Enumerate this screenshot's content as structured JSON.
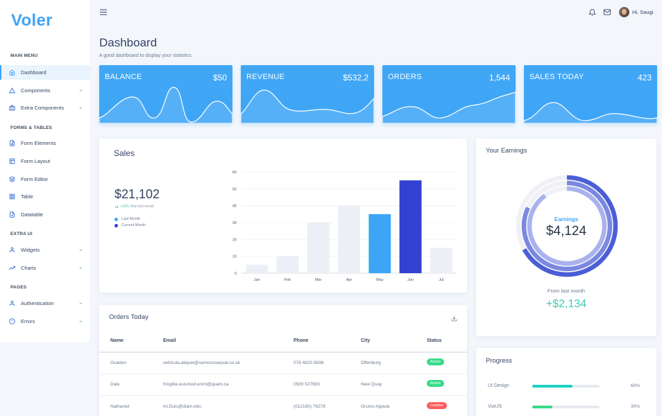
{
  "app": {
    "logo": "Voler"
  },
  "header": {
    "greeting": "Hi, Saugi"
  },
  "page": {
    "title": "Dashboard",
    "subtitle": "A good dashboard to display your statistics"
  },
  "sidebar": {
    "sections": [
      {
        "title": "Main Menu",
        "items": [
          {
            "label": "Dashboard",
            "icon": "home-icon",
            "active": true
          },
          {
            "label": "Components",
            "icon": "triangle-icon",
            "dropdown": true
          },
          {
            "label": "Extra Components",
            "icon": "briefcase-icon",
            "dropdown": true
          }
        ]
      },
      {
        "title": "Forms & Tables",
        "items": [
          {
            "label": "Form Elements",
            "icon": "file-text-icon"
          },
          {
            "label": "Form Layout",
            "icon": "layout-icon"
          },
          {
            "label": "Form Editor",
            "icon": "layers-icon"
          },
          {
            "label": "Table",
            "icon": "grid-icon"
          },
          {
            "label": "Datatable",
            "icon": "file-plus-icon"
          }
        ]
      },
      {
        "title": "Extra UI",
        "items": [
          {
            "label": "Widgets",
            "icon": "user-icon",
            "dropdown": true
          },
          {
            "label": "Charts",
            "icon": "trending-up-icon",
            "dropdown": true
          }
        ]
      },
      {
        "title": "Pages",
        "items": [
          {
            "label": "Authentication",
            "icon": "user-icon",
            "dropdown": true
          },
          {
            "label": "Errors",
            "icon": "alert-circle-icon",
            "dropdown": true
          }
        ]
      }
    ]
  },
  "stats": [
    {
      "label": "BALANCE",
      "value": "$50"
    },
    {
      "label": "REVENUE",
      "value": "$532,2"
    },
    {
      "label": "ORDERS",
      "value": "1,544"
    },
    {
      "label": "SALES TODAY",
      "value": "423"
    }
  ],
  "sales": {
    "title": "Sales",
    "total": "$21,102",
    "change": "+12%",
    "change_note": "than last month",
    "legend": [
      {
        "label": "Last Month",
        "color": "#3ea5f6"
      },
      {
        "label": "Current Month",
        "color": "#3241d0"
      }
    ]
  },
  "chart_data": {
    "type": "bar",
    "categories": [
      "Jan",
      "Feb",
      "Mar",
      "Apr",
      "May",
      "Jun",
      "Jul"
    ],
    "values": [
      5,
      10,
      30,
      40,
      35,
      55,
      15
    ],
    "bar_colors": [
      "#eceff6",
      "#eceff6",
      "#eceff6",
      "#eceff6",
      "#3ea5f6",
      "#3241d0",
      "#eceff6"
    ],
    "ylim": [
      0,
      60
    ],
    "yticks": [
      0,
      10,
      20,
      30,
      40,
      50,
      60
    ],
    "grid": true
  },
  "earnings": {
    "title": "Your Earnings",
    "label": "Earnings",
    "value": "$4,124",
    "from_label": "From last month",
    "delta": "+$2,134",
    "rings": [
      {
        "color": "#4c5ed6",
        "fraction": 0.67
      },
      {
        "color": "#7b88e0",
        "fraction": 0.82
      },
      {
        "color": "#a9b2ec",
        "fraction": 0.9
      }
    ]
  },
  "orders": {
    "title": "Orders Today",
    "columns": [
      "Name",
      "Email",
      "Phone",
      "City",
      "Status"
    ],
    "rows": [
      {
        "name": "Graiden",
        "email": "vehicula.aliquet@semconsequat.co.uk",
        "phone": "076 4820 8838",
        "city": "Offenburg",
        "status": "Active",
        "status_color": "#39da8a"
      },
      {
        "name": "Dale",
        "email": "fringilla.euismod.enim@quam.ca",
        "phone": "0500 527693",
        "city": "New Quay",
        "status": "Active",
        "status_color": "#39da8a"
      },
      {
        "name": "Nathaniel",
        "email": "mi.Duis@diam.edu",
        "phone": "(012165) 76278",
        "city": "Grumo Appula",
        "status": "Inactive",
        "status_color": "#ff5b5c"
      }
    ]
  },
  "progress": {
    "title": "Progress",
    "items": [
      {
        "label": "UI Design",
        "percent": 60,
        "percent_label": "60%",
        "color": "#1cd1c4"
      },
      {
        "label": "VueJS",
        "percent": 30,
        "percent_label": "30%",
        "color": "#39da8a"
      }
    ]
  }
}
